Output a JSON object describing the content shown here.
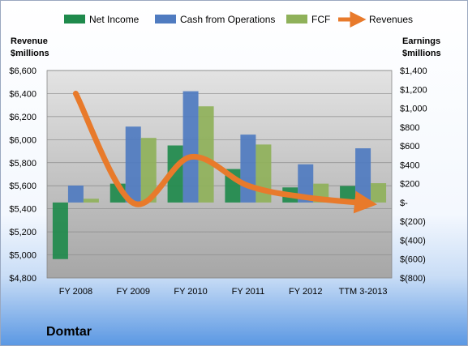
{
  "chart_data": {
    "type": "bar",
    "title": "Domtar",
    "categories": [
      "FY 2008",
      "FY 2009",
      "FY 2010",
      "FY 2011",
      "FY 2012",
      "TTM 3-2013"
    ],
    "left_axis": {
      "label_line1": "Revenue",
      "label_line2": "$millions",
      "ylim": [
        4800,
        6600
      ],
      "ticks": [
        4800,
        5000,
        5200,
        5400,
        5600,
        5800,
        6000,
        6200,
        6400,
        6600
      ],
      "tick_labels": [
        "$4,800",
        "$5,000",
        "$5,200",
        "$5,400",
        "$5,600",
        "$5,800",
        "$6,000",
        "$6,200",
        "$6,400",
        "$6,600"
      ]
    },
    "right_axis": {
      "label_line1": "Earnings",
      "label_line2": "$millions",
      "ylim": [
        -800,
        1400
      ],
      "ticks": [
        -800,
        -600,
        -400,
        -200,
        0,
        200,
        400,
        600,
        800,
        1000,
        1200,
        1400
      ],
      "tick_labels": [
        "$(800)",
        "$(600)",
        "$(400)",
        "$(200)",
        "$-",
        "$200",
        "$400",
        "$600",
        "$800",
        "$1,000",
        "$1,200",
        "$1,400"
      ]
    },
    "series": [
      {
        "name": "Net Income",
        "axis": "right",
        "color": "#1f8a4c",
        "values": [
          -600,
          200,
          605,
          355,
          160,
          175
        ]
      },
      {
        "name": "Cash from Operations",
        "axis": "right",
        "color": "#4f7bc0",
        "values": [
          180,
          805,
          1180,
          720,
          405,
          575
        ]
      },
      {
        "name": "FCF",
        "axis": "right",
        "color": "#8fb15a",
        "values": [
          40,
          685,
          1020,
          615,
          200,
          205
        ]
      },
      {
        "name": "Revenues",
        "axis": "left",
        "type": "line",
        "color": "#e87a2b",
        "values": [
          6400,
          5450,
          5850,
          5600,
          5500,
          5450
        ]
      }
    ],
    "legend_position": "top",
    "grid": true
  }
}
